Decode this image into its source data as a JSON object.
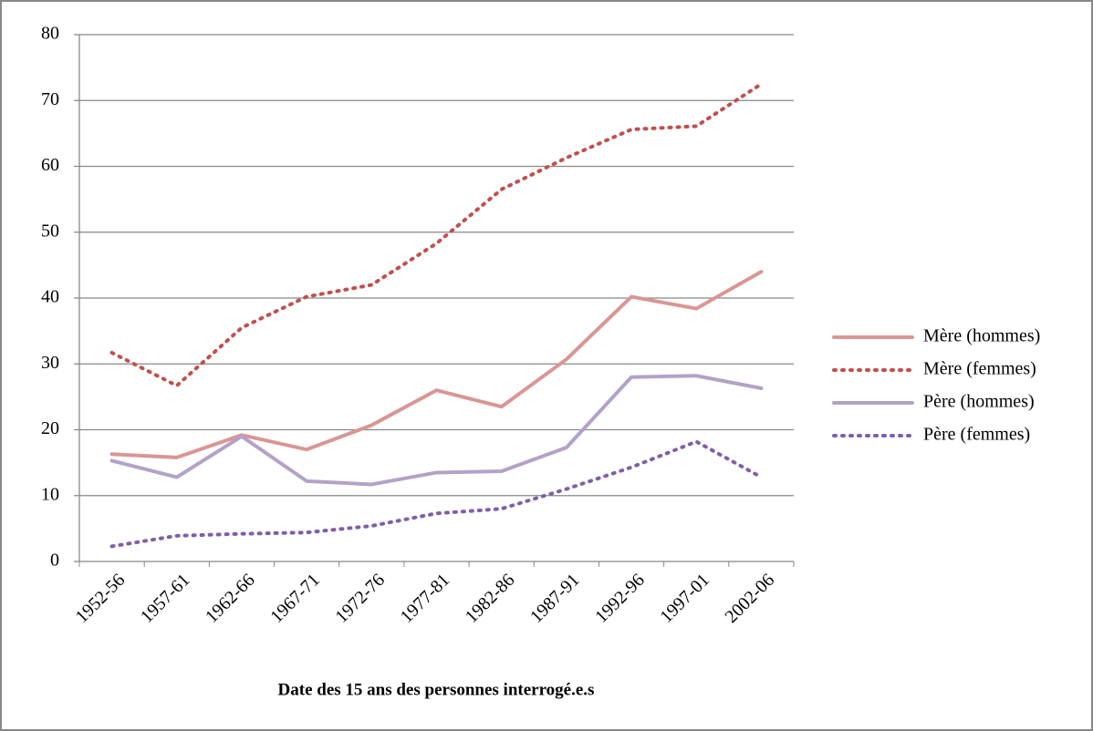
{
  "chart_data": {
    "type": "line",
    "x_label": "Date des 15 ans des personnes interrogé.e.s",
    "categories": [
      "1952-56",
      "1957-61",
      "1962-66",
      "1967-71",
      "1972-76",
      "1977-81",
      "1982-86",
      "1987-91",
      "1992-96",
      "1997-01",
      "2002-06"
    ],
    "series": [
      {
        "name": "Mère (hommes)",
        "color": "#d99694",
        "style": "solid",
        "values": [
          16.3,
          15.8,
          19.2,
          17.0,
          20.7,
          26.0,
          23.5,
          30.7,
          40.2,
          38.4,
          44.0
        ]
      },
      {
        "name": "Mère (femmes)",
        "color": "#c0504d",
        "style": "dotted",
        "values": [
          31.7,
          26.7,
          35.5,
          40.2,
          42.0,
          48.3,
          56.5,
          61.3,
          65.6,
          66.1,
          72.5
        ]
      },
      {
        "name": "Père (hommes)",
        "color": "#b3a2c7",
        "style": "solid",
        "values": [
          15.3,
          12.8,
          19.0,
          12.2,
          11.7,
          13.5,
          13.7,
          17.3,
          28.0,
          28.2,
          26.3
        ]
      },
      {
        "name": "Père (femmes)",
        "color": "#7f5fa8",
        "style": "dotted",
        "values": [
          2.3,
          3.9,
          4.2,
          4.4,
          5.4,
          7.3,
          8.0,
          11.0,
          14.3,
          18.2,
          12.8
        ]
      }
    ],
    "ylim": [
      0,
      80
    ],
    "yticks": [
      0,
      10,
      20,
      30,
      40,
      50,
      60,
      70,
      80
    ],
    "grid": true,
    "legend": "right"
  }
}
